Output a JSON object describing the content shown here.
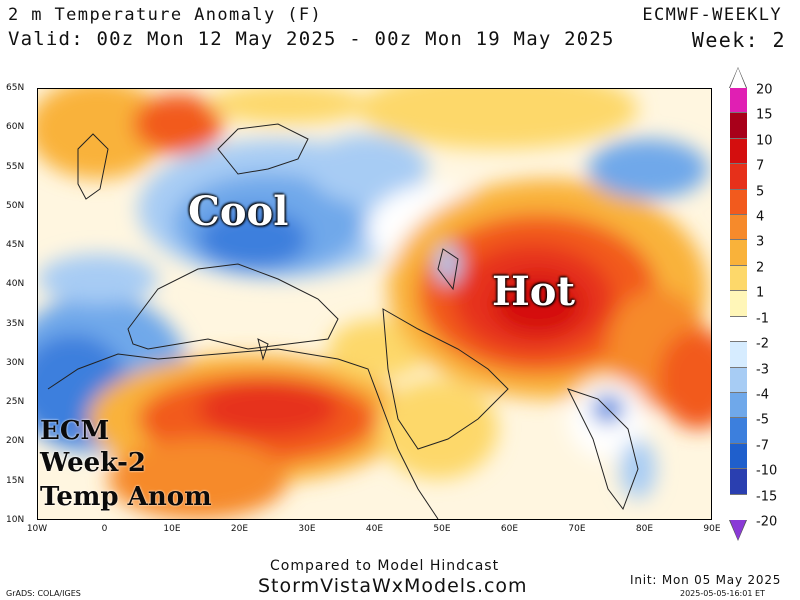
{
  "header": {
    "title": "2 m Temperature Anomaly (F)",
    "valid": "Valid: 00z Mon 12 May 2025 - 00z Mon 19 May 2025",
    "model": "ECMWF-WEEKLY",
    "week": "Week: 2"
  },
  "map": {
    "lat_labels": [
      "65N",
      "60N",
      "55N",
      "50N",
      "45N",
      "40N",
      "35N",
      "30N",
      "25N",
      "20N",
      "15N",
      "10N"
    ],
    "lon_labels": [
      "10W",
      "0",
      "10E",
      "20E",
      "30E",
      "40E",
      "50E",
      "60E",
      "70E",
      "80E",
      "90E"
    ],
    "annotations": {
      "cool": "Cool",
      "hot": "Hot"
    },
    "overlay_text": {
      "line1": "ECM",
      "line2": "Week-2",
      "line3": "Temp Anom"
    }
  },
  "colorbar": {
    "labels": [
      "20",
      "15",
      "10",
      "7",
      "5",
      "4",
      "3",
      "2",
      "1",
      "-1",
      "-2",
      "-3",
      "-4",
      "-5",
      "-7",
      "-10",
      "-15",
      "-20"
    ],
    "colors": [
      "#e01fb3",
      "#a8001a",
      "#d40e0e",
      "#e6301a",
      "#f25a1d",
      "#f68a2b",
      "#f9b23a",
      "#fdd86a",
      "#fff6b8",
      "#ffffff",
      "#d6ecff",
      "#a7ccf4",
      "#6fa8ea",
      "#3c7fdd",
      "#1f5fcc",
      "#2a3fb0",
      "#5e3fb0",
      "#8a3ad6"
    ]
  },
  "footer": {
    "compared": "Compared to Model Hindcast",
    "site": "StormVistaWxModels.com",
    "grads": "GrADS: COLA/IGES",
    "init": "Init: Mon 05 May 2025",
    "stamp": "2025-05-05-16:01 ET"
  }
}
